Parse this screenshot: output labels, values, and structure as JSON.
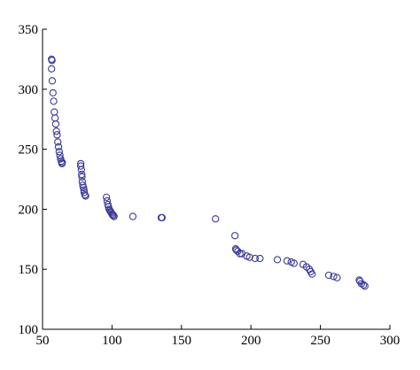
{
  "chart_data": {
    "type": "scatter",
    "title": "",
    "xlabel": "",
    "ylabel": "",
    "xlim": [
      50,
      300
    ],
    "ylim": [
      100,
      350
    ],
    "xticks": [
      50,
      100,
      150,
      200,
      250,
      300
    ],
    "yticks": [
      100,
      150,
      200,
      250,
      300,
      350
    ],
    "xtick_labels": [
      "50",
      "100",
      "150",
      "200",
      "250",
      "300"
    ],
    "ytick_labels": [
      "100",
      "150",
      "200",
      "250",
      "300",
      "350"
    ],
    "grid": false,
    "legend": "none",
    "marker": "open-circle",
    "marker_color": "#3a3a9a",
    "axis_color": "#000000",
    "series": [
      {
        "points": [
          [
            56.5,
            325
          ],
          [
            56.8,
            324
          ],
          [
            56.5,
            317
          ],
          [
            57,
            307
          ],
          [
            57.5,
            297
          ],
          [
            58,
            290
          ],
          [
            58.5,
            281
          ],
          [
            59,
            276
          ],
          [
            59.5,
            271
          ],
          [
            60,
            265
          ],
          [
            60.5,
            262
          ],
          [
            61,
            256
          ],
          [
            61.5,
            252
          ],
          [
            62,
            248
          ],
          [
            62.5,
            245
          ],
          [
            63,
            242
          ],
          [
            63.5,
            240
          ],
          [
            64,
            238
          ],
          [
            64.2,
            239
          ],
          [
            77.5,
            238
          ],
          [
            77.5,
            236
          ],
          [
            78,
            233
          ],
          [
            78.2,
            229
          ],
          [
            78.4,
            227
          ],
          [
            78.6,
            223
          ],
          [
            79,
            220
          ],
          [
            79.5,
            218
          ],
          [
            79.8,
            216
          ],
          [
            80,
            214
          ],
          [
            80.5,
            212
          ],
          [
            81,
            211
          ],
          [
            96,
            210
          ],
          [
            96.5,
            207
          ],
          [
            97,
            204
          ],
          [
            97.5,
            202
          ],
          [
            98,
            200
          ],
          [
            98.5,
            199
          ],
          [
            99,
            198
          ],
          [
            99.5,
            197
          ],
          [
            100,
            196
          ],
          [
            100.5,
            195
          ],
          [
            101,
            195
          ],
          [
            101.5,
            194
          ],
          [
            115,
            194
          ],
          [
            135.5,
            193
          ],
          [
            136,
            193
          ],
          [
            174.5,
            192
          ],
          [
            188.5,
            178
          ],
          [
            189,
            167
          ],
          [
            189.5,
            166
          ],
          [
            190.5,
            165
          ],
          [
            192,
            163
          ],
          [
            193.5,
            163
          ],
          [
            197,
            161
          ],
          [
            199,
            160
          ],
          [
            203,
            159
          ],
          [
            206.5,
            159
          ],
          [
            219,
            158
          ],
          [
            226,
            157
          ],
          [
            229,
            156
          ],
          [
            231,
            155
          ],
          [
            237.5,
            154
          ],
          [
            240,
            152
          ],
          [
            242,
            150
          ],
          [
            243,
            148
          ],
          [
            244,
            146
          ],
          [
            256,
            145
          ],
          [
            259.5,
            144
          ],
          [
            262,
            143
          ],
          [
            278,
            141
          ],
          [
            278.5,
            140
          ],
          [
            279.5,
            138
          ],
          [
            281,
            137
          ],
          [
            282,
            136
          ]
        ]
      }
    ]
  }
}
